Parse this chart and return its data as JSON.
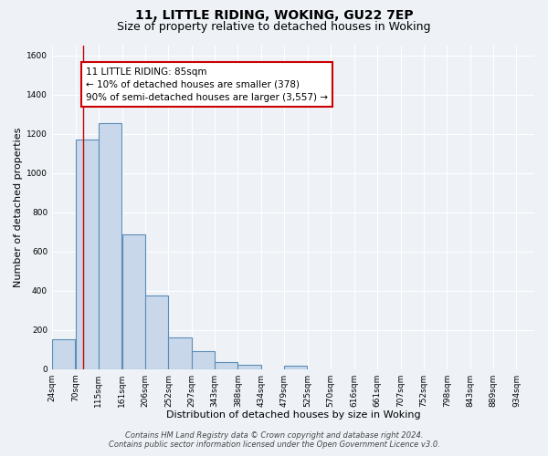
{
  "title": "11, LITTLE RIDING, WOKING, GU22 7EP",
  "subtitle": "Size of property relative to detached houses in Woking",
  "xlabel": "Distribution of detached houses by size in Woking",
  "ylabel": "Number of detached properties",
  "bar_left_edges": [
    24,
    70,
    115,
    161,
    206,
    252,
    297,
    343,
    388,
    434,
    479,
    525,
    570,
    616,
    661,
    707,
    752,
    798,
    843,
    889
  ],
  "bar_heights": [
    150,
    1170,
    1255,
    685,
    375,
    160,
    90,
    35,
    20,
    0,
    15,
    0,
    0,
    0,
    0,
    0,
    0,
    0,
    0,
    0
  ],
  "bin_width": 45,
  "bar_color": "#c8d8ea",
  "bar_edge_color": "#5b8db8",
  "bar_edge_width": 0.8,
  "red_line_x": 85,
  "red_line_color": "#cc0000",
  "annotation_lines": [
    "11 LITTLE RIDING: 85sqm",
    "← 10% of detached houses are smaller (378)",
    "90% of semi-detached houses are larger (3,557) →"
  ],
  "annotation_fontsize": 7.5,
  "ylim": [
    0,
    1650
  ],
  "yticks": [
    0,
    200,
    400,
    600,
    800,
    1000,
    1200,
    1400,
    1600
  ],
  "xtick_labels": [
    "24sqm",
    "70sqm",
    "115sqm",
    "161sqm",
    "206sqm",
    "252sqm",
    "297sqm",
    "343sqm",
    "388sqm",
    "434sqm",
    "479sqm",
    "525sqm",
    "570sqm",
    "616sqm",
    "661sqm",
    "707sqm",
    "752sqm",
    "798sqm",
    "843sqm",
    "889sqm",
    "934sqm"
  ],
  "footer_line1": "Contains HM Land Registry data © Crown copyright and database right 2024.",
  "footer_line2": "Contains public sector information licensed under the Open Government Licence v3.0.",
  "background_color": "#eef2f7",
  "grid_color": "#ffffff",
  "title_fontsize": 10,
  "subtitle_fontsize": 9,
  "axis_label_fontsize": 8,
  "tick_fontsize": 6.5,
  "footer_fontsize": 6
}
